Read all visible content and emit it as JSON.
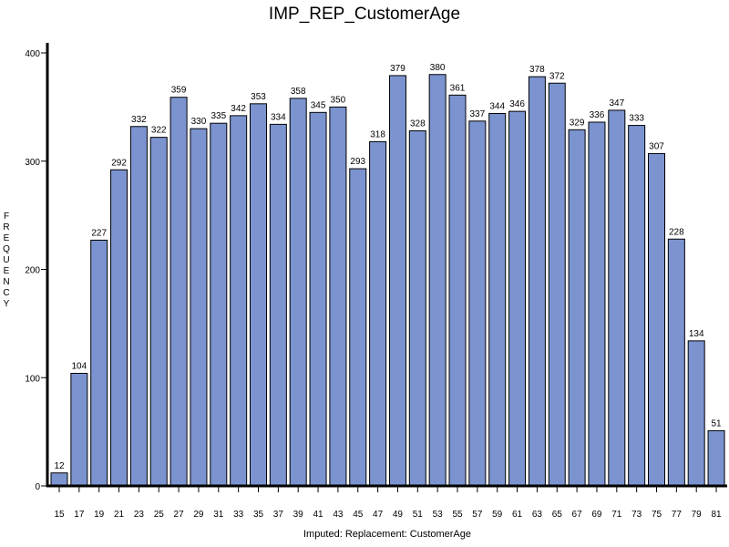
{
  "chart_data": {
    "type": "bar",
    "title": "IMP_REP_CustomerAge",
    "xlabel": "Imputed: Replacement: CustomerAge",
    "ylabel": "FREQUENCY",
    "ylim": [
      0,
      400
    ],
    "yticks": [
      0,
      100,
      200,
      300,
      400
    ],
    "categories": [
      "15",
      "17",
      "19",
      "21",
      "23",
      "25",
      "27",
      "29",
      "31",
      "33",
      "35",
      "37",
      "39",
      "41",
      "43",
      "45",
      "47",
      "49",
      "51",
      "53",
      "55",
      "57",
      "59",
      "61",
      "63",
      "65",
      "67",
      "69",
      "71",
      "73",
      "75",
      "77",
      "79",
      "81"
    ],
    "values": [
      12,
      104,
      227,
      292,
      332,
      322,
      359,
      330,
      335,
      342,
      353,
      334,
      358,
      345,
      350,
      293,
      318,
      379,
      328,
      380,
      361,
      337,
      344,
      346,
      378,
      372,
      329,
      336,
      347,
      333,
      307,
      228,
      134,
      51
    ],
    "bar_color": "#7b93cf",
    "bar_edge_color": "#000000",
    "grid": false,
    "legend": "none"
  }
}
